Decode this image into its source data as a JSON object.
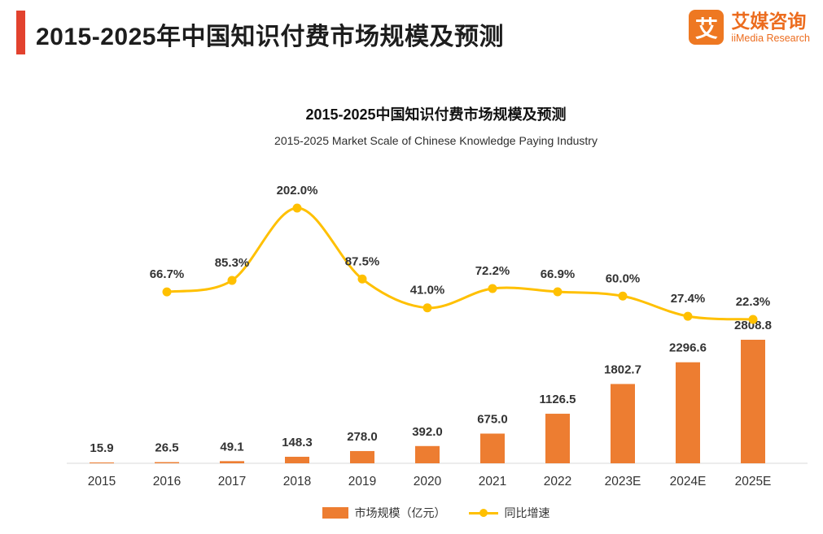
{
  "header": {
    "title": "2015-2025年中国知识付费市场规模及预测",
    "accent_color": "#e2422e",
    "logo": {
      "glyph": "艾",
      "name_cn": "艾媒咨询",
      "name_en": "iiMedia Research",
      "color": "#ec6c1e"
    }
  },
  "chart": {
    "title": "2015-2025中国知识付费市场规模及预测",
    "subtitle": "2015-2025 Market Scale of Chinese Knowledge Paying Industry"
  },
  "chart_data": {
    "type": "bar+line",
    "title": "2015-2025中国知识付费市场规模及预测",
    "subtitle": "2015-2025 Market Scale of Chinese Knowledge Paying Industry",
    "categories": [
      "2015",
      "2016",
      "2017",
      "2018",
      "2019",
      "2020",
      "2021",
      "2022",
      "2023E",
      "2024E",
      "2025E"
    ],
    "series": [
      {
        "name": "市场规模（亿元）",
        "type": "bar",
        "color": "#ed7d31",
        "values": [
          15.9,
          26.5,
          49.1,
          148.3,
          278.0,
          392.0,
          675.0,
          1126.5,
          1802.7,
          2296.6,
          2808.8
        ]
      },
      {
        "name": "同比增速",
        "type": "line",
        "color": "#ffc000",
        "unit": "%",
        "values": [
          null,
          66.7,
          85.3,
          202.0,
          87.5,
          41.0,
          72.2,
          66.9,
          60.0,
          27.4,
          22.3
        ]
      }
    ],
    "xlabel": "",
    "ylabel": "",
    "grid": false,
    "legend_position": "bottom",
    "data_labels": true
  }
}
